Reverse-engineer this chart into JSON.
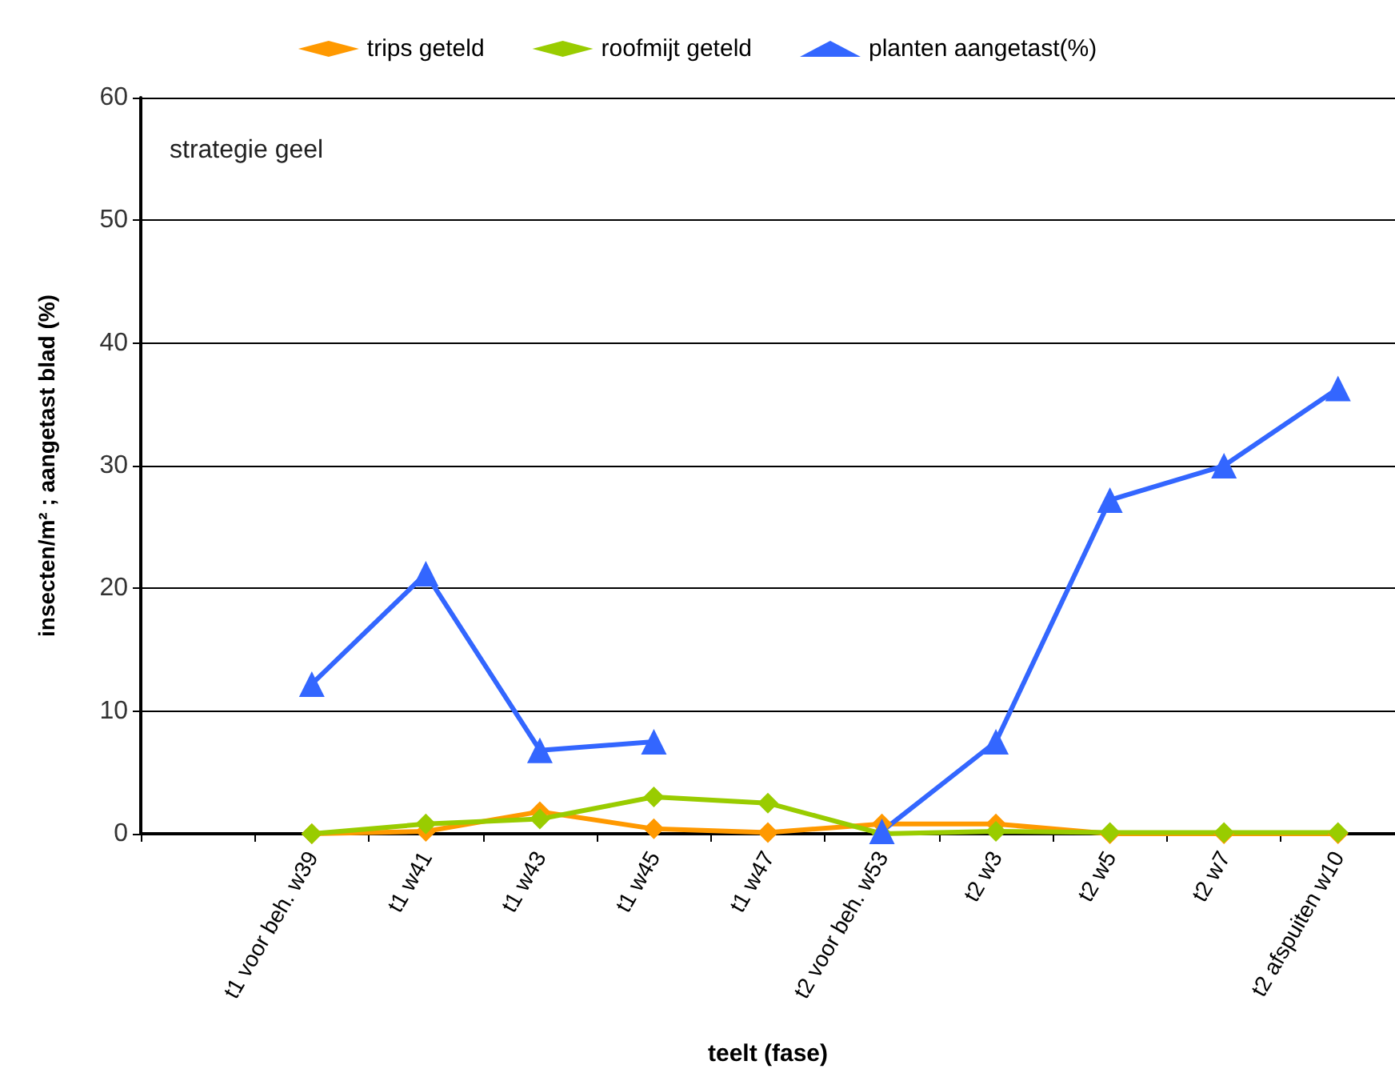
{
  "chart_data": {
    "type": "line",
    "xlabel": "teelt (fase)",
    "ylabel": "insecten/m² ; aangetast blad (%)",
    "annotations": [
      "strategie geel"
    ],
    "categories": [
      null,
      "t1 voor beh. w39",
      "t1 w41",
      "t1 w43",
      "t1 w45",
      "t1 w47",
      "t2 voor beh. w53",
      "t2 w3",
      "t2 w5",
      "t2 w7",
      "t2 afspuiten w10"
    ],
    "series": [
      {
        "name": "trips geteld",
        "color": "#ff9900",
        "marker": "diamond",
        "values": [
          null,
          0,
          0.2,
          1.8,
          0.4,
          0.1,
          0.8,
          0.8,
          0,
          0,
          0
        ]
      },
      {
        "name": "roofmijt geteld",
        "color": "#99cc00",
        "marker": "diamond",
        "values": [
          null,
          0,
          0.8,
          1.2,
          3,
          2.5,
          0,
          0.2,
          0.1,
          0.1,
          0.1
        ]
      },
      {
        "name": "planten aangetast(%)",
        "color": "#3366ff",
        "marker": "triangle",
        "values": [
          null,
          12.2,
          21.2,
          6.8,
          7.5,
          null,
          0.2,
          7.5,
          27.2,
          30,
          36.3
        ]
      }
    ],
    "ylim": [
      0,
      60
    ],
    "yticks": [
      0,
      10,
      20,
      30,
      40,
      50,
      60
    ],
    "grid": "y",
    "legend": "top"
  }
}
